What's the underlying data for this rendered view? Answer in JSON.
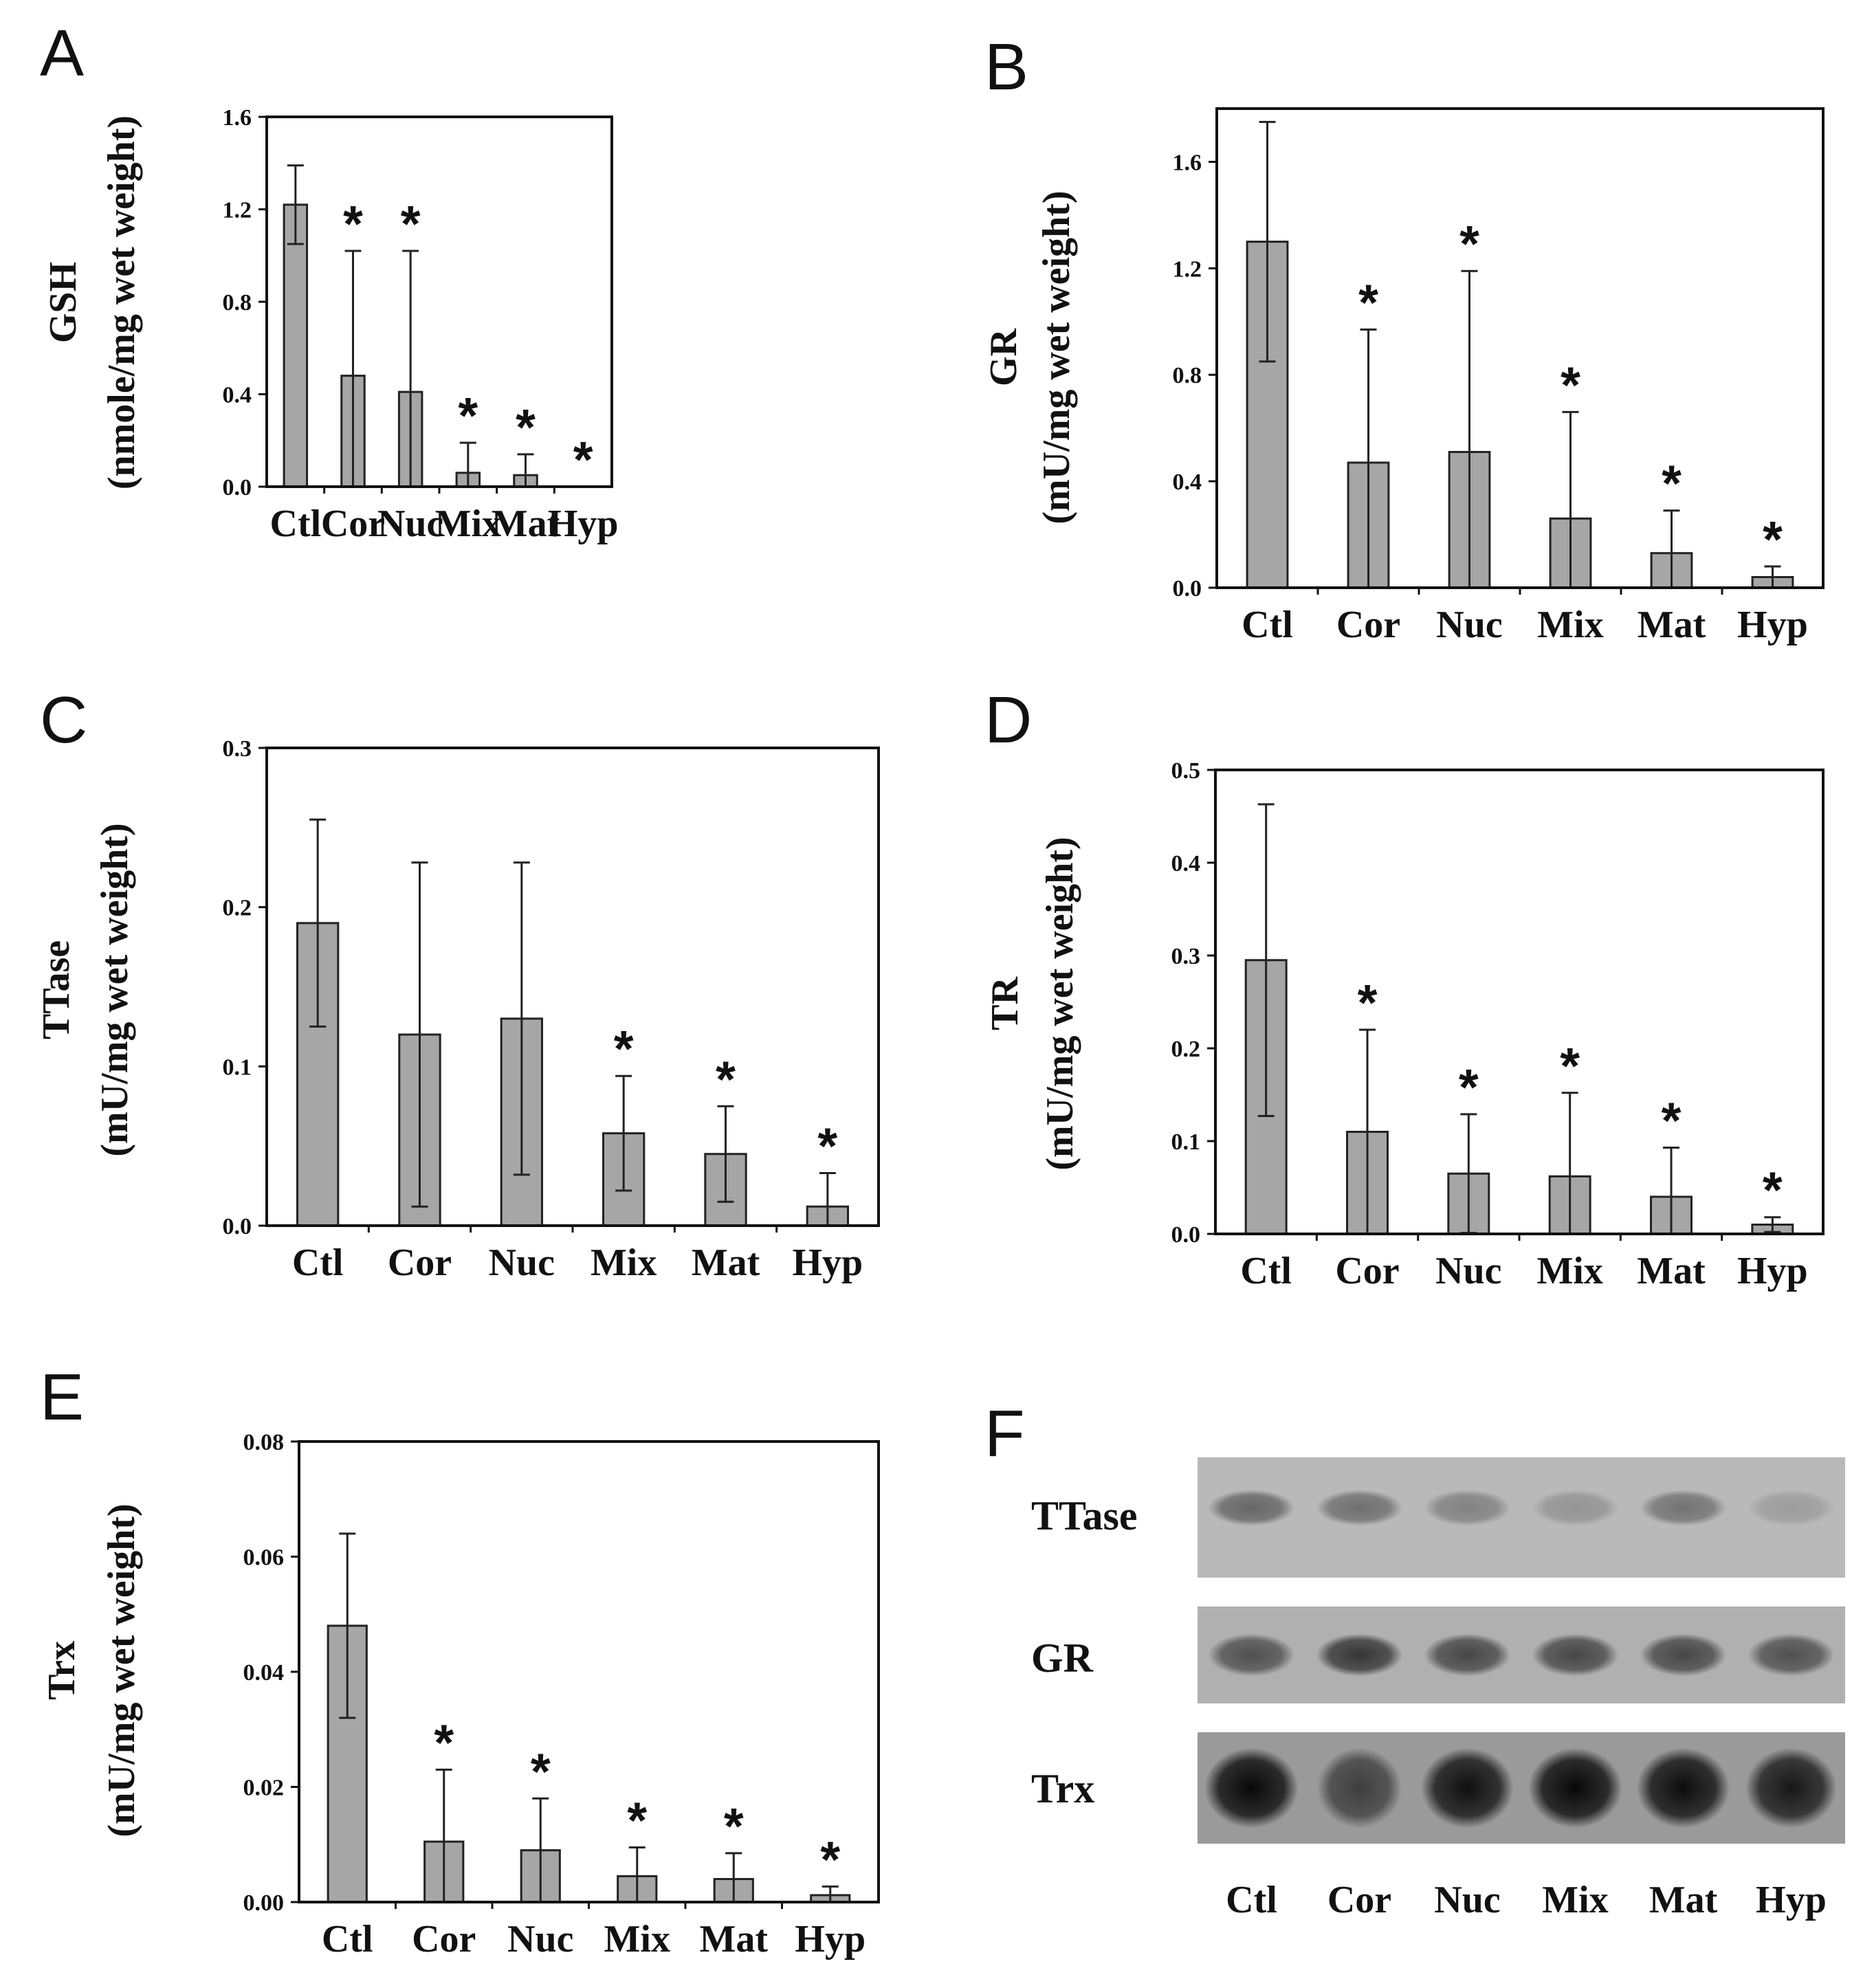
{
  "chart_data": [
    {
      "panel": "A",
      "type": "bar",
      "ylabel": "GSH",
      "ylabel2": "(nmole/mg wet weight)",
      "categories": [
        "Ctl",
        "Cor",
        "Nuc",
        "Mix",
        "Mat",
        "Hyp"
      ],
      "values": [
        1.22,
        0.48,
        0.41,
        0.06,
        0.05,
        0.0
      ],
      "errors": [
        0.17,
        0.54,
        0.61,
        0.13,
        0.09,
        0.0
      ],
      "significant": [
        false,
        true,
        true,
        true,
        true,
        true
      ],
      "ylim": [
        0,
        1.6
      ],
      "yticks": [
        "0.0",
        "0.4",
        "0.8",
        "1.2",
        "1.6"
      ]
    },
    {
      "panel": "B",
      "type": "bar",
      "ylabel": "GR",
      "ylabel2": "(mU/mg wet weight)",
      "categories": [
        "Ctl",
        "Cor",
        "Nuc",
        "Mix",
        "Mat",
        "Hyp"
      ],
      "values": [
        1.3,
        0.47,
        0.51,
        0.26,
        0.13,
        0.04
      ],
      "errors": [
        0.45,
        0.5,
        0.68,
        0.4,
        0.16,
        0.04
      ],
      "significant": [
        false,
        true,
        true,
        true,
        true,
        true
      ],
      "ylim": [
        0,
        1.8
      ],
      "yticks": [
        "0.0",
        "0.4",
        "0.8",
        "1.2",
        "1.6"
      ]
    },
    {
      "panel": "C",
      "type": "bar",
      "ylabel": "TTase",
      "ylabel2": "(mU/mg wet weight)",
      "categories": [
        "Ctl",
        "Cor",
        "Nuc",
        "Mix",
        "Mat",
        "Hyp"
      ],
      "values": [
        0.19,
        0.12,
        0.13,
        0.058,
        0.045,
        0.012
      ],
      "errors": [
        0.065,
        0.108,
        0.098,
        0.036,
        0.03,
        0.021
      ],
      "significant": [
        false,
        false,
        false,
        true,
        true,
        true
      ],
      "ylim": [
        0,
        0.3
      ],
      "yticks": [
        "0.0",
        "0.1",
        "0.2",
        "0.3"
      ]
    },
    {
      "panel": "D",
      "type": "bar",
      "ylabel": "TR",
      "ylabel2": "(mU/mg wet weight)",
      "categories": [
        "Ctl",
        "Cor",
        "Nuc",
        "Mix",
        "Mat",
        "Hyp"
      ],
      "values": [
        0.295,
        0.11,
        0.065,
        0.062,
        0.04,
        0.01
      ],
      "errors": [
        0.168,
        0.11,
        0.064,
        0.09,
        0.053,
        0.008
      ],
      "significant": [
        false,
        true,
        true,
        true,
        true,
        true
      ],
      "ylim": [
        0,
        0.5
      ],
      "yticks": [
        "0.0",
        "0.1",
        "0.2",
        "0.3",
        "0.4",
        "0.5"
      ]
    },
    {
      "panel": "E",
      "type": "bar",
      "ylabel": "Trx",
      "ylabel2": "(mU/mg wet weight)",
      "categories": [
        "Ctl",
        "Cor",
        "Nuc",
        "Mix",
        "Mat",
        "Hyp"
      ],
      "values": [
        0.048,
        0.0105,
        0.009,
        0.0045,
        0.004,
        0.0012
      ],
      "errors": [
        0.016,
        0.0125,
        0.009,
        0.005,
        0.0045,
        0.0015
      ],
      "significant": [
        false,
        true,
        true,
        true,
        true,
        true
      ],
      "ylim": [
        0,
        0.08
      ],
      "yticks": [
        "0.00",
        "0.02",
        "0.04",
        "0.06",
        "0.08"
      ]
    }
  ],
  "blot": {
    "panel": "F",
    "rows": [
      {
        "label": "TTase",
        "intensity": [
          0.45,
          0.4,
          0.3,
          0.2,
          0.38,
          0.15
        ]
      },
      {
        "label": "GR",
        "intensity": [
          0.55,
          0.7,
          0.6,
          0.6,
          0.6,
          0.55
        ]
      },
      {
        "label": "Trx",
        "intensity": [
          0.95,
          0.6,
          0.9,
          0.95,
          0.92,
          0.85
        ]
      }
    ],
    "lanes": [
      "Ctl",
      "Cor",
      "Nuc",
      "Mix",
      "Mat",
      "Hyp"
    ]
  },
  "significance_marker": "*"
}
